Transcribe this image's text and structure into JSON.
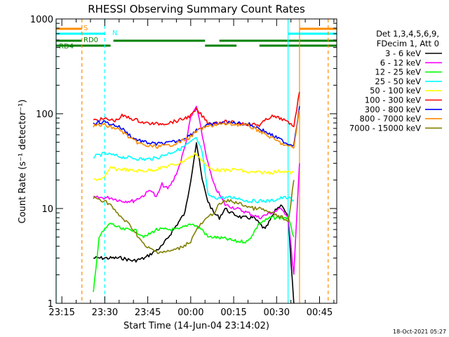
{
  "chart_data": {
    "type": "line",
    "title": "RHESSI Observing Summary Count Rates",
    "xlabel": "Start Time (14-Jun-04 23:14:02)",
    "ylabel": "Count Rate (s⁻¹ detector⁻¹)",
    "yscale": "log",
    "ylim": [
      1,
      1000
    ],
    "xlim_minutes": [
      -1,
      97
    ],
    "x_unit": "minutes after 23:14:02",
    "ytick_labels": [
      "1",
      "10",
      "100",
      "1000"
    ],
    "ytick_values": [
      1,
      10,
      100,
      1000
    ],
    "xtick_labels": [
      "23:15",
      "23:30",
      "23:45",
      "00:00",
      "00:15",
      "00:30",
      "00:45"
    ],
    "xtick_values": [
      1,
      16,
      31,
      46,
      61,
      76,
      91
    ],
    "timestamp": "18-Oct-2021 05:27",
    "legend_header": [
      "Det 1,3,4,5,6,9,",
      "FDecim 1, Att 0"
    ],
    "series": [
      {
        "name": "3 - 6 keV",
        "color": "#000000",
        "x": [
          12,
          18,
          22,
          26,
          30,
          36,
          40,
          44,
          46,
          48,
          50,
          52,
          54,
          56,
          58,
          60,
          64,
          68,
          72,
          76,
          78,
          80,
          82
        ],
        "values": [
          3,
          3,
          3,
          2.8,
          3,
          4,
          6,
          9,
          20,
          50,
          20,
          12,
          9,
          8,
          10,
          9,
          8,
          8,
          6,
          10,
          11,
          8,
          1
        ]
      },
      {
        "name": "6 - 12 keV",
        "color": "#ff00ff",
        "x": [
          12,
          18,
          22,
          26,
          30,
          32,
          34,
          36,
          38,
          40,
          42,
          44,
          46,
          48,
          50,
          52,
          54,
          58,
          62,
          66,
          70,
          74,
          78,
          80,
          82,
          84
        ],
        "values": [
          13,
          13,
          12,
          12,
          14,
          16,
          13,
          18,
          16,
          20,
          28,
          45,
          90,
          120,
          60,
          30,
          18,
          11,
          10,
          9,
          8,
          9,
          10,
          8,
          2,
          30
        ]
      },
      {
        "name": "12 - 25 keV",
        "color": "#00ff00",
        "x": [
          12,
          14,
          16,
          18,
          22,
          26,
          30,
          34,
          38,
          42,
          46,
          50,
          52,
          54,
          58,
          62,
          66,
          70,
          74,
          78,
          80,
          82
        ],
        "values": [
          1.3,
          5,
          6,
          7,
          6,
          6,
          5,
          6,
          6,
          6,
          7,
          6,
          5,
          5,
          4.8,
          4.5,
          4.5,
          7,
          8,
          8,
          8,
          5
        ]
      },
      {
        "name": "25 - 50 keV",
        "color": "#00ffff",
        "x": [
          12,
          16,
          18,
          20,
          22,
          26,
          30,
          34,
          38,
          42,
          46,
          48,
          50,
          52,
          54,
          58,
          62,
          66,
          70,
          74,
          78,
          80,
          82
        ],
        "values": [
          35,
          38,
          37,
          36,
          35,
          34,
          33,
          34,
          38,
          42,
          50,
          55,
          40,
          14,
          13,
          13,
          13,
          12,
          12,
          12,
          13,
          13,
          12
        ]
      },
      {
        "name": "50 - 100 keV",
        "color": "#ffff00",
        "x": [
          12,
          16,
          18,
          20,
          22,
          26,
          30,
          34,
          38,
          42,
          46,
          48,
          50,
          52,
          54,
          58,
          62,
          66,
          70,
          74,
          78,
          80,
          82
        ],
        "values": [
          20,
          21,
          27,
          26,
          26,
          25,
          25,
          26,
          28,
          30,
          35,
          38,
          32,
          27,
          26,
          25,
          26,
          24,
          24,
          24,
          25,
          24,
          24
        ]
      },
      {
        "name": "100 - 300 keV",
        "color": "#ff0000",
        "x": [
          12,
          16,
          18,
          20,
          22,
          26,
          30,
          34,
          38,
          42,
          46,
          48,
          50,
          52,
          54,
          58,
          62,
          66,
          70,
          74,
          78,
          80,
          82,
          84
        ],
        "values": [
          85,
          88,
          86,
          85,
          95,
          88,
          80,
          78,
          80,
          85,
          95,
          110,
          95,
          80,
          80,
          82,
          80,
          78,
          76,
          94,
          88,
          80,
          75,
          170
        ]
      },
      {
        "name": "300 - 800 keV",
        "color": "#0000ff",
        "x": [
          12,
          16,
          18,
          20,
          22,
          26,
          30,
          34,
          38,
          42,
          46,
          48,
          50,
          52,
          54,
          58,
          62,
          66,
          70,
          74,
          78,
          80,
          82,
          84
        ],
        "values": [
          80,
          82,
          78,
          75,
          70,
          55,
          50,
          48,
          49,
          52,
          60,
          68,
          72,
          75,
          78,
          80,
          80,
          78,
          70,
          60,
          52,
          48,
          47,
          120
        ]
      },
      {
        "name": "800 - 7000 keV",
        "color": "#ff8c00",
        "x": [
          12,
          16,
          18,
          20,
          22,
          26,
          30,
          34,
          38,
          42,
          46,
          48,
          50,
          52,
          54,
          58,
          62,
          66,
          70,
          74,
          78,
          80,
          82,
          84
        ],
        "values": [
          75,
          76,
          72,
          70,
          65,
          52,
          46,
          45,
          46,
          50,
          57,
          65,
          70,
          73,
          76,
          78,
          77,
          75,
          66,
          56,
          48,
          45,
          44,
          110
        ]
      },
      {
        "name": "7000 - 15000 keV",
        "color": "#808000",
        "x": [
          12,
          16,
          18,
          20,
          22,
          24,
          26,
          30,
          34,
          38,
          42,
          46,
          48,
          50,
          52,
          54,
          56,
          58,
          60,
          64,
          68,
          70,
          74,
          78,
          80,
          82
        ],
        "values": [
          13,
          12,
          11,
          9,
          8,
          7,
          6,
          4,
          3.5,
          3.5,
          3.8,
          4.5,
          6,
          7,
          8,
          9,
          11,
          12,
          12,
          11,
          10,
          10,
          9,
          8,
          7,
          20
        ]
      }
    ],
    "state_bars": [
      {
        "label": "S",
        "color": "#ff8c00",
        "segments": [
          [
            -1,
            8
          ],
          [
            84,
            97
          ]
        ]
      },
      {
        "label": "N",
        "color": "#00ffff",
        "segments": [
          [
            -1,
            16
          ],
          [
            80,
            97
          ]
        ]
      },
      {
        "label": "RD0",
        "color": "#008000",
        "segments": [
          [
            -1,
            8
          ],
          [
            19,
            51
          ],
          [
            56,
            97
          ]
        ]
      },
      {
        "label": "RD4",
        "color": "#008000",
        "segments": [
          [
            -1,
            18
          ],
          [
            51,
            62
          ],
          [
            70,
            97
          ]
        ]
      }
    ],
    "vertical_markers": [
      {
        "x": 8,
        "color": "#ff8c00",
        "style": "dashed"
      },
      {
        "x": 16,
        "color": "#00ffff",
        "style": "dashed"
      },
      {
        "x": 80,
        "color": "#00ffff",
        "style": "solid"
      },
      {
        "x": 84,
        "color": "#ff8c00",
        "style": "solid"
      },
      {
        "x": 94,
        "color": "#ff8c00",
        "style": "dashed"
      },
      {
        "x": -1,
        "color": "#00ffff",
        "style": "solid"
      }
    ]
  }
}
